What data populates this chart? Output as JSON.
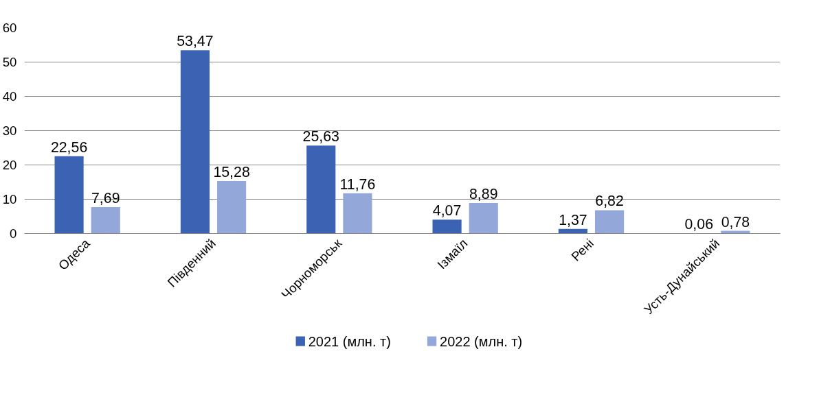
{
  "chart_data": {
    "type": "bar",
    "categories": [
      "Одеса",
      "Південний",
      "Чорноморськ",
      "Ізмаїл",
      "Рені",
      "Усть-Дунайський"
    ],
    "series": [
      {
        "name": "2021 (млн. т)",
        "color": "#3c62b4",
        "values": [
          22.56,
          53.47,
          25.63,
          4.07,
          1.37,
          0.06
        ],
        "value_labels": [
          "22,56",
          "53,47",
          "25,63",
          "4,07",
          "1,37",
          "0,06"
        ]
      },
      {
        "name": "2022 (млн. т)",
        "color": "#94a7d9",
        "values": [
          7.69,
          15.28,
          11.76,
          8.89,
          6.82,
          0.78
        ],
        "value_labels": [
          "7,69",
          "15,28",
          "11,76",
          "8,89",
          "6,82",
          "0,78"
        ]
      }
    ],
    "ylim": [
      0,
      60
    ],
    "yticks": [
      0,
      10,
      20,
      30,
      40,
      50,
      60
    ],
    "grid": "y",
    "legend": "bottom"
  }
}
